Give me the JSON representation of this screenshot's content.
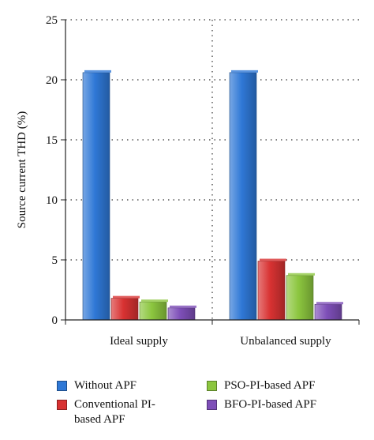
{
  "chart_data": {
    "type": "bar",
    "categories": [
      "Ideal supply",
      "Unbalanced supply"
    ],
    "series": [
      {
        "name": "Without APF",
        "values": [
          20.6,
          20.6
        ],
        "color": "#2f78d6"
      },
      {
        "name": "Conventional PI-based APF",
        "values": [
          1.8,
          4.9
        ],
        "color": "#d83232"
      },
      {
        "name": "PSO-PI-based APF",
        "values": [
          1.5,
          3.7
        ],
        "color": "#8cc63f"
      },
      {
        "name": "BFO-PI-based APF",
        "values": [
          1.0,
          1.3
        ],
        "color": "#7e4fb8"
      }
    ],
    "ylabel": "Source current THD (%)",
    "ylim": [
      0,
      25
    ],
    "yticks": [
      0,
      5,
      10,
      15,
      20,
      25
    ],
    "grid": "dotted",
    "legend_position": "bottom"
  },
  "legend": {
    "without_apf": "Without APF",
    "conventional_line1": "Conventional PI-",
    "conventional_line2": "based APF",
    "pso": "PSO-PI-based APF",
    "bfo": "BFO-PI-based APF"
  }
}
